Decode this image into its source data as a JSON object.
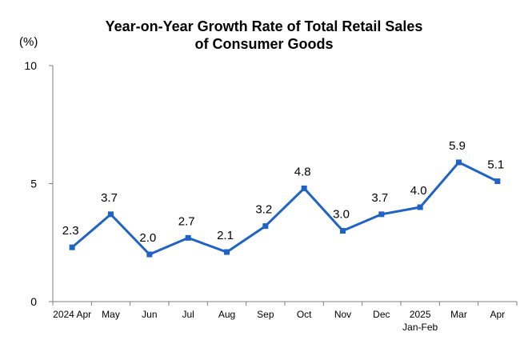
{
  "chart_data": {
    "type": "line",
    "title_line1": "Year-on-Year Growth Rate of Total Retail Sales",
    "title_line2": "of Consumer Goods",
    "unit_label": "(%)",
    "ylim": [
      0,
      10
    ],
    "yticks": [
      "0",
      "5",
      "10"
    ],
    "categories": [
      [
        "2024 Apr"
      ],
      [
        "May"
      ],
      [
        "Jun"
      ],
      [
        "Jul"
      ],
      [
        "Aug"
      ],
      [
        "Sep"
      ],
      [
        "Oct"
      ],
      [
        "Nov"
      ],
      [
        "Dec"
      ],
      [
        "2025",
        "Jan-Feb"
      ],
      [
        "Mar"
      ],
      [
        "Apr"
      ]
    ],
    "values": [
      2.3,
      3.7,
      2.0,
      2.7,
      2.1,
      3.2,
      4.8,
      3.0,
      3.7,
      4.0,
      5.9,
      5.1
    ],
    "value_labels": [
      "2.3",
      "3.7",
      "2.0",
      "2.7",
      "2.1",
      "3.2",
      "4.8",
      "3.0",
      "3.7",
      "4.0",
      "5.9",
      "5.1"
    ],
    "line_color": "#1f63c6",
    "axis_color": "#7f7f7f",
    "grid": false,
    "legend": "none"
  }
}
